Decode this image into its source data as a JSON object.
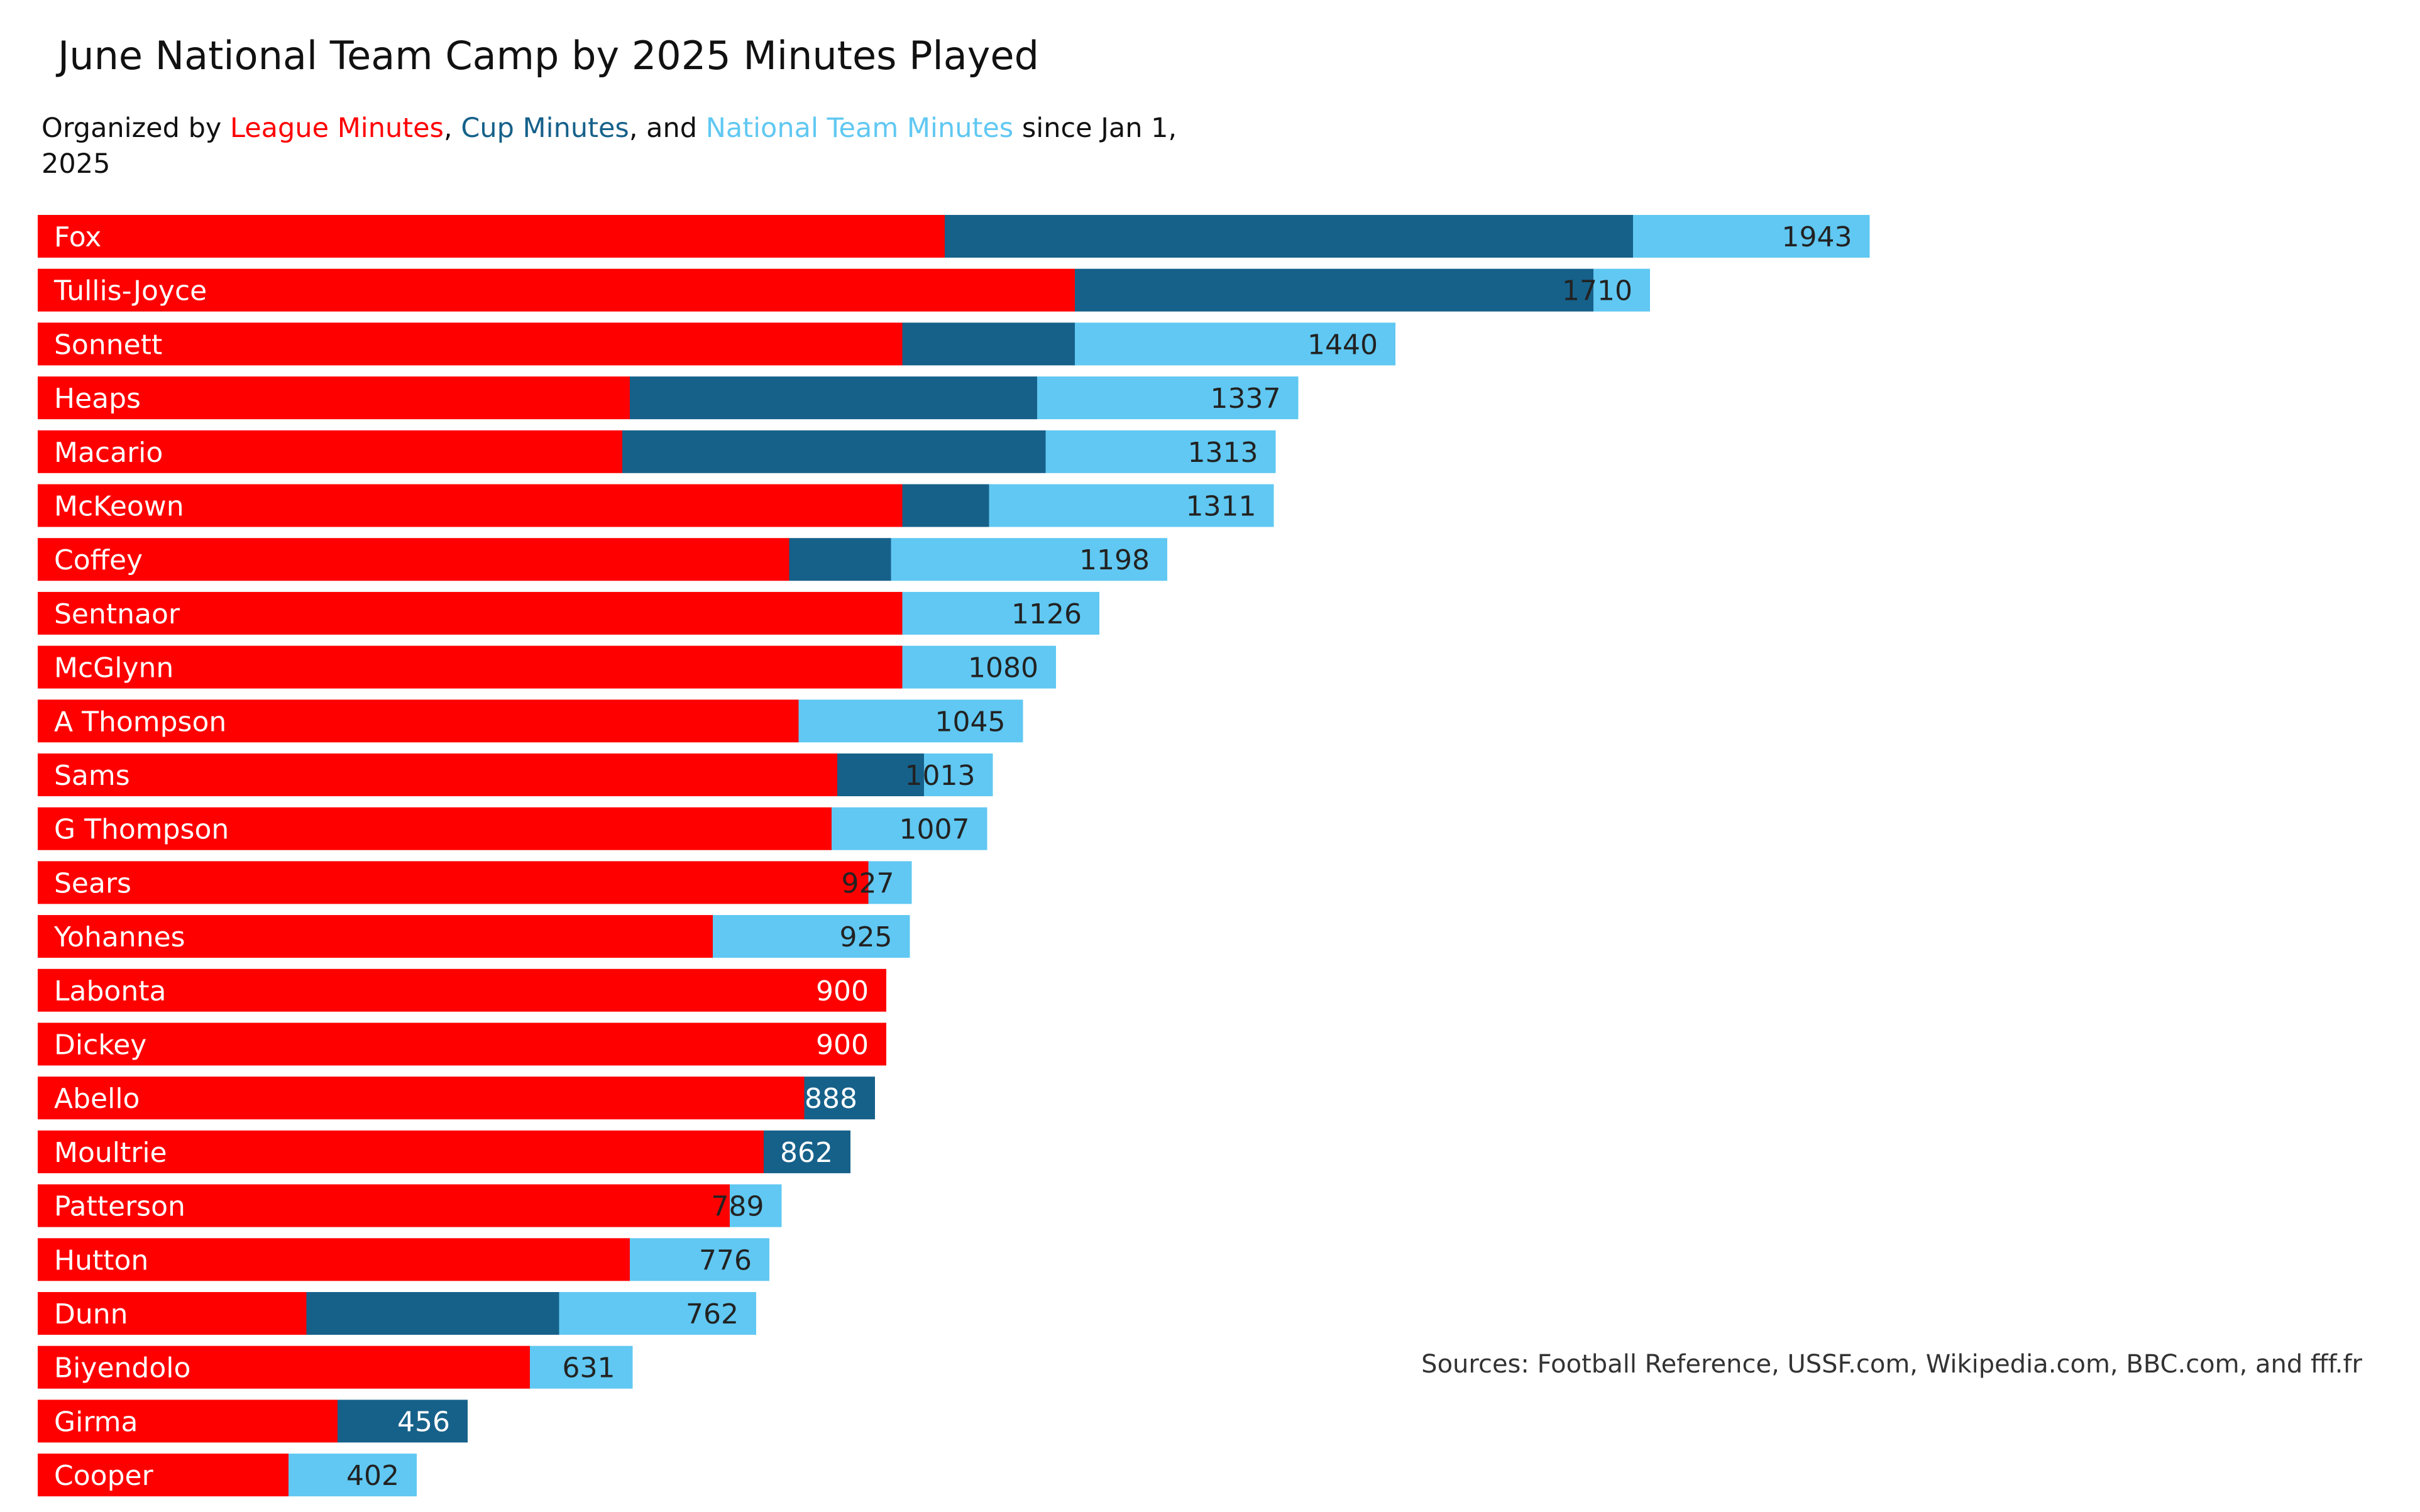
{
  "colors": {
    "league": "#ff0000",
    "cup": "#16618a",
    "national": "#60c8f2",
    "text": "#111111"
  },
  "chart_data": {
    "type": "bar",
    "orientation": "horizontal",
    "stacked": true,
    "title": "June National Team Camp by 2025 Minutes Played",
    "subtitle": {
      "prefix": "Organized by ",
      "league": "League Minutes",
      "sep1": ", ",
      "cup": "Cup Minutes",
      "sep2": ", and ",
      "national": "National Team Minutes",
      "suffix": " since Jan 1, 2025"
    },
    "source": "Sources:  Football Reference, USSF.com, Wikipedia.com, BBC.com, and fff.fr",
    "series": [
      {
        "name": "League Minutes",
        "color_key": "league"
      },
      {
        "name": "Cup Minutes",
        "color_key": "cup"
      },
      {
        "name": "National Team Minutes",
        "color_key": "national"
      }
    ],
    "xlim": [
      0,
      2000
    ],
    "players": [
      {
        "name": "Fox",
        "league": 962,
        "cup": 730,
        "national": 251,
        "total": 1943
      },
      {
        "name": "Tullis-Joyce",
        "league": 1100,
        "cup": 550,
        "national": 60,
        "total": 1710
      },
      {
        "name": "Sonnett",
        "league": 917,
        "cup": 183,
        "national": 340,
        "total": 1440
      },
      {
        "name": "Heaps",
        "league": 628,
        "cup": 432,
        "national": 277,
        "total": 1337
      },
      {
        "name": "Macario",
        "league": 620,
        "cup": 449,
        "national": 244,
        "total": 1313
      },
      {
        "name": "McKeown",
        "league": 917,
        "cup": 92,
        "national": 302,
        "total": 1311
      },
      {
        "name": "Coffey",
        "league": 797,
        "cup": 108,
        "national": 293,
        "total": 1198
      },
      {
        "name": "Sentnaor",
        "league": 917,
        "cup": 0,
        "national": 209,
        "total": 1126
      },
      {
        "name": "McGlynn",
        "league": 917,
        "cup": 0,
        "national": 163,
        "total": 1080
      },
      {
        "name": "A Thompson",
        "league": 807,
        "cup": 0,
        "national": 238,
        "total": 1045
      },
      {
        "name": "Sams",
        "league": 848,
        "cup": 92,
        "national": 73,
        "total": 1013
      },
      {
        "name": "G Thompson",
        "league": 842,
        "cup": 0,
        "national": 165,
        "total": 1007
      },
      {
        "name": "Sears",
        "league": 881,
        "cup": 0,
        "national": 46,
        "total": 927
      },
      {
        "name": "Yohannes",
        "league": 716,
        "cup": 0,
        "national": 209,
        "total": 925
      },
      {
        "name": "Labonta",
        "league": 900,
        "cup": 0,
        "national": 0,
        "total": 900
      },
      {
        "name": "Dickey",
        "league": 900,
        "cup": 0,
        "national": 0,
        "total": 900
      },
      {
        "name": "Abello",
        "league": 813,
        "cup": 75,
        "national": 0,
        "total": 888
      },
      {
        "name": "Moultrie",
        "league": 770,
        "cup": 92,
        "national": 0,
        "total": 862
      },
      {
        "name": "Patterson",
        "league": 734,
        "cup": 0,
        "national": 55,
        "total": 789
      },
      {
        "name": "Hutton",
        "league": 628,
        "cup": 0,
        "national": 148,
        "total": 776
      },
      {
        "name": "Dunn",
        "league": 285,
        "cup": 268,
        "national": 209,
        "total": 762
      },
      {
        "name": "Biyendolo",
        "league": 522,
        "cup": 0,
        "national": 109,
        "total": 631
      },
      {
        "name": "Girma",
        "league": 318,
        "cup": 138,
        "national": 0,
        "total": 456
      },
      {
        "name": "Cooper",
        "league": 266,
        "cup": 0,
        "national": 136,
        "total": 402
      }
    ]
  }
}
